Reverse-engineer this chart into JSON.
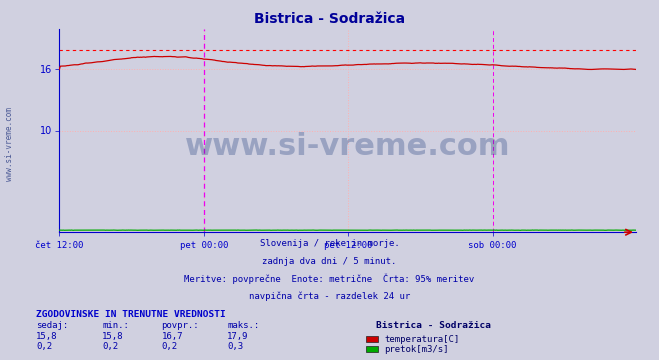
{
  "title": "Bistrica - Sodražica",
  "title_color": "#000099",
  "bg_color": "#d0d0e0",
  "plot_bg_color": "#d0d0e0",
  "x_labels": [
    "čet 12:00",
    "pet 00:00",
    "pet 12:00",
    "sob 00:00"
  ],
  "ylim": [
    0,
    20
  ],
  "xlim": [
    0,
    575
  ],
  "grid_color": "#ffb0b0",
  "temp_line_color": "#cc0000",
  "flow_line_color": "#00aa00",
  "max_line_color": "#ff0000",
  "vline_color": "#ee00ee",
  "watermark_text": "www.si-vreme.com",
  "watermark_color": "#1a3a7a",
  "watermark_alpha": 0.3,
  "max_temp": 17.9,
  "min_temp": 15.8,
  "avg_temp": 16.7,
  "curr_temp": 15.8,
  "footer_lines": [
    "Slovenija / reke in morje.",
    "zadnja dva dni / 5 minut.",
    "Meritve: povprečne  Enote: metrične  Črta: 95% meritev",
    "navpična črta - razdelek 24 ur"
  ],
  "legend_title": "Bistrica - Sodražica",
  "legend_entries": [
    "temperatura[C]",
    "pretok[m3/s]"
  ],
  "legend_colors": [
    "#cc0000",
    "#00aa00"
  ],
  "table_title": "ZGODOVINSKE IN TRENUTNE VREDNOSTI",
  "table_headers": [
    "sedaj:",
    "min.:",
    "povpr.:",
    "maks.:"
  ],
  "table_data": [
    [
      "15,8",
      "15,8",
      "16,7",
      "17,9"
    ],
    [
      "0,2",
      "0,2",
      "0,2",
      "0,3"
    ]
  ],
  "table_color": "#000099",
  "left_label": "www.si-vreme.com",
  "spine_color": "#0000cc",
  "yticks": [
    10,
    16
  ]
}
